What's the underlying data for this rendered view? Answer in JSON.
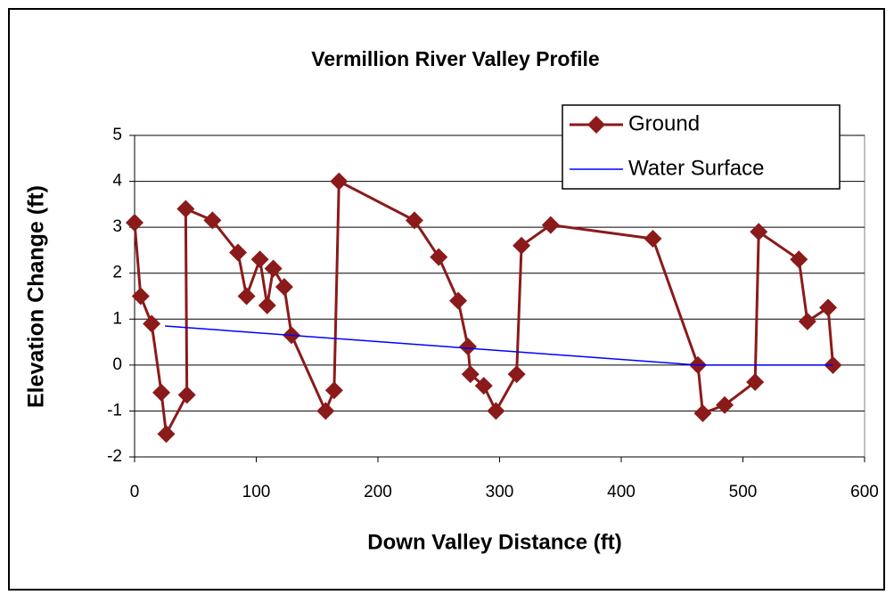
{
  "chart_data": {
    "type": "line",
    "title": "Vermillion River Valley Profile",
    "x_label": "Down Valley Distance (ft)",
    "y_label": "Elevation Change (ft)",
    "xlim": [
      0,
      600
    ],
    "xticks": [
      0,
      100,
      200,
      300,
      400,
      500,
      600
    ],
    "ylim": [
      -2,
      5
    ],
    "yticks": [
      -2,
      -1,
      0,
      1,
      2,
      3,
      4,
      5
    ],
    "grid": true,
    "legend": "upper right",
    "series": [
      {
        "name": "Ground",
        "color": "#8b1a1a",
        "marker": "diamond",
        "x": [
          0,
          5,
          14,
          22,
          26,
          43,
          42,
          64,
          85,
          92,
          103,
          109,
          114,
          123,
          129,
          157,
          164,
          168,
          230,
          250,
          266,
          274,
          276,
          287,
          297,
          314,
          318,
          342,
          426,
          463,
          467,
          485,
          510,
          513,
          546,
          553,
          570,
          574
        ],
        "values": [
          3.1,
          1.5,
          0.9,
          -0.6,
          -1.5,
          -0.65,
          3.4,
          3.15,
          2.45,
          1.5,
          2.3,
          1.3,
          2.1,
          1.7,
          0.65,
          -1.0,
          -0.55,
          4.0,
          3.15,
          2.35,
          1.4,
          0.4,
          -0.2,
          -0.45,
          -1.0,
          -0.2,
          2.6,
          3.05,
          2.75,
          0,
          -1.05,
          -0.87,
          -0.37,
          2.9,
          2.3,
          0.95,
          1.25,
          0
        ]
      },
      {
        "name": "Water Surface",
        "color": "#0000ff",
        "x": [
          25,
          463,
          510,
          574
        ],
        "values": [
          0.85,
          0,
          0,
          0
        ]
      }
    ]
  }
}
